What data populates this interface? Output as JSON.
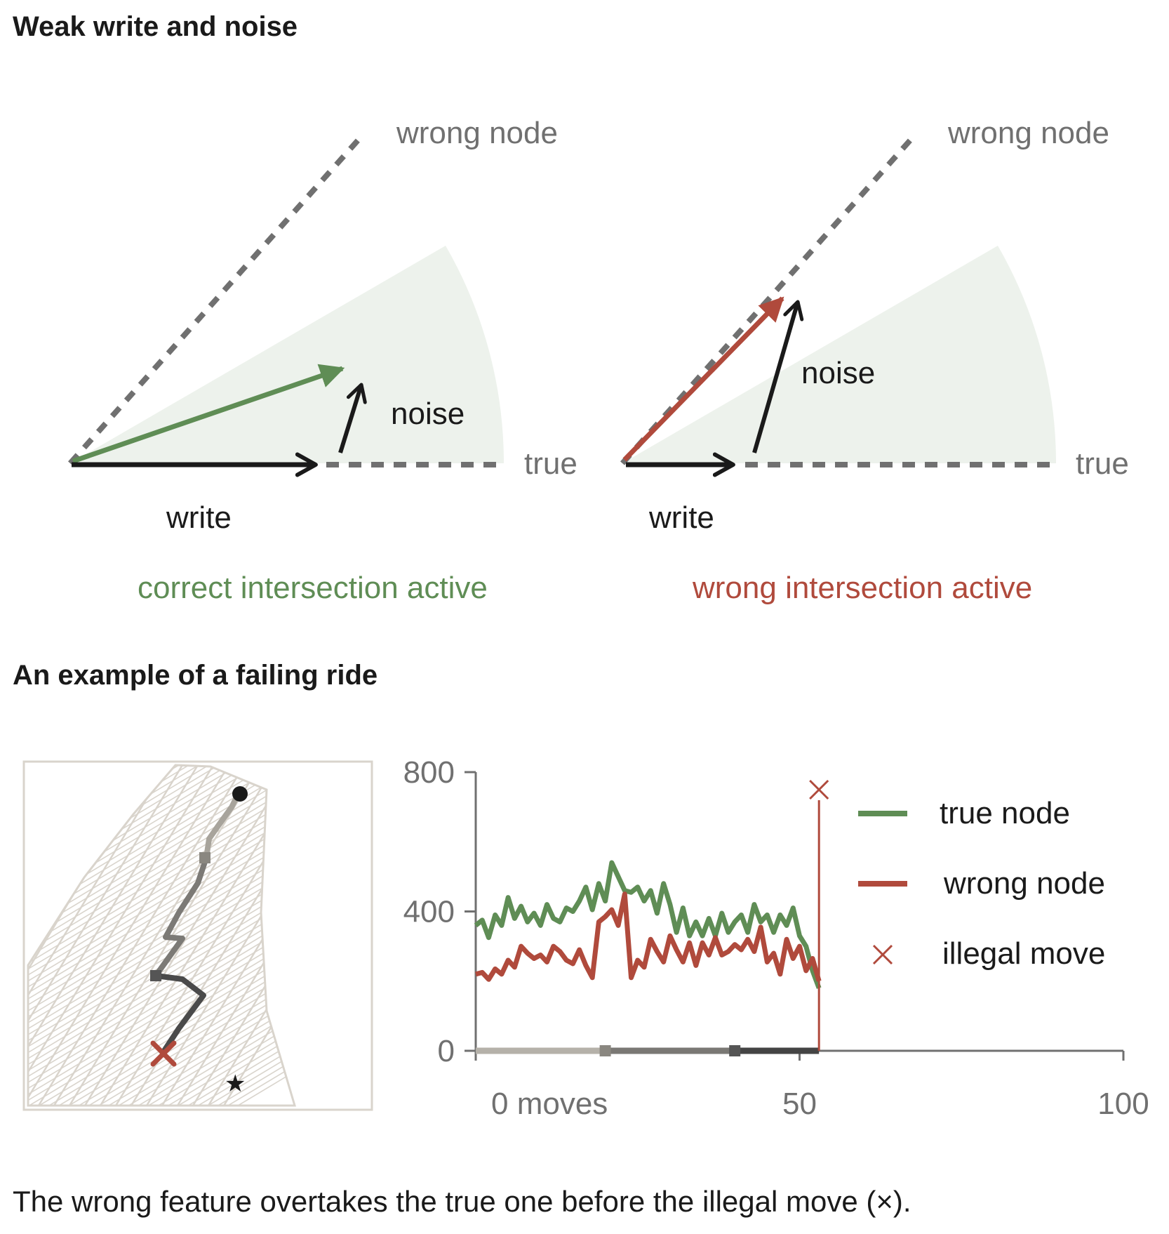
{
  "section1": {
    "title": "Weak write and noise",
    "left": {
      "wrong_label": "wrong node",
      "true_label": "true",
      "noise_label": "noise",
      "write_label": "write",
      "caption": "correct intersection active"
    },
    "right": {
      "wrong_label": "wrong node",
      "true_label": "true",
      "noise_label": "noise",
      "write_label": "write",
      "caption": "wrong intersection active"
    }
  },
  "section2": {
    "title": "An example of a failing ride"
  },
  "caption": "The wrong feature overtakes the true one before the illegal move (×).",
  "colors": {
    "green": "#5f8d55",
    "red": "#b04a3c",
    "gray": "#707070",
    "wedge": "#edf2ec",
    "map_street": "#d9d4cc"
  },
  "chart_data": {
    "type": "line",
    "x": [
      0,
      1,
      2,
      3,
      4,
      5,
      6,
      7,
      8,
      9,
      10,
      11,
      12,
      13,
      14,
      15,
      16,
      17,
      18,
      19,
      20,
      21,
      22,
      23,
      24,
      25,
      26,
      27,
      28,
      29,
      30,
      31,
      32,
      33,
      34,
      35,
      36,
      37,
      38,
      39,
      40,
      41,
      42,
      43,
      44,
      45,
      46,
      47,
      48,
      49,
      50,
      51,
      52,
      53
    ],
    "series": [
      {
        "name": "true node",
        "color": "#5f8d55",
        "values": [
          360,
          375,
          325,
          390,
          360,
          440,
          380,
          415,
          370,
          395,
          360,
          420,
          380,
          370,
          410,
          400,
          430,
          470,
          405,
          480,
          430,
          540,
          500,
          460,
          455,
          470,
          430,
          460,
          395,
          480,
          420,
          340,
          410,
          330,
          370,
          330,
          380,
          330,
          395,
          340,
          370,
          390,
          340,
          420,
          370,
          390,
          340,
          390,
          360,
          410,
          330,
          300,
          230,
          180
        ]
      },
      {
        "name": "wrong node",
        "color": "#b04a3c",
        "values": [
          220,
          225,
          205,
          235,
          220,
          260,
          240,
          300,
          280,
          265,
          275,
          255,
          300,
          285,
          260,
          250,
          290,
          245,
          210,
          370,
          385,
          405,
          360,
          450,
          210,
          260,
          240,
          320,
          285,
          255,
          330,
          290,
          255,
          310,
          245,
          310,
          275,
          325,
          275,
          285,
          305,
          290,
          320,
          285,
          355,
          255,
          280,
          220,
          320,
          265,
          300,
          230,
          265,
          200
        ]
      }
    ],
    "illegal_move": {
      "x": 53,
      "label": "illegal move"
    },
    "xticks": [
      "0 moves",
      "50",
      "100"
    ],
    "xtick_values": [
      0,
      50,
      100
    ],
    "yticks": [
      "0",
      "400",
      "800"
    ],
    "ytick_values": [
      0,
      400,
      800
    ],
    "xlim": [
      0,
      100
    ],
    "ylim": [
      0,
      800
    ],
    "legend": [
      "true node",
      "wrong node",
      "illegal move"
    ],
    "legend_position": "top-right",
    "waypoints_x": [
      20,
      40
    ]
  }
}
